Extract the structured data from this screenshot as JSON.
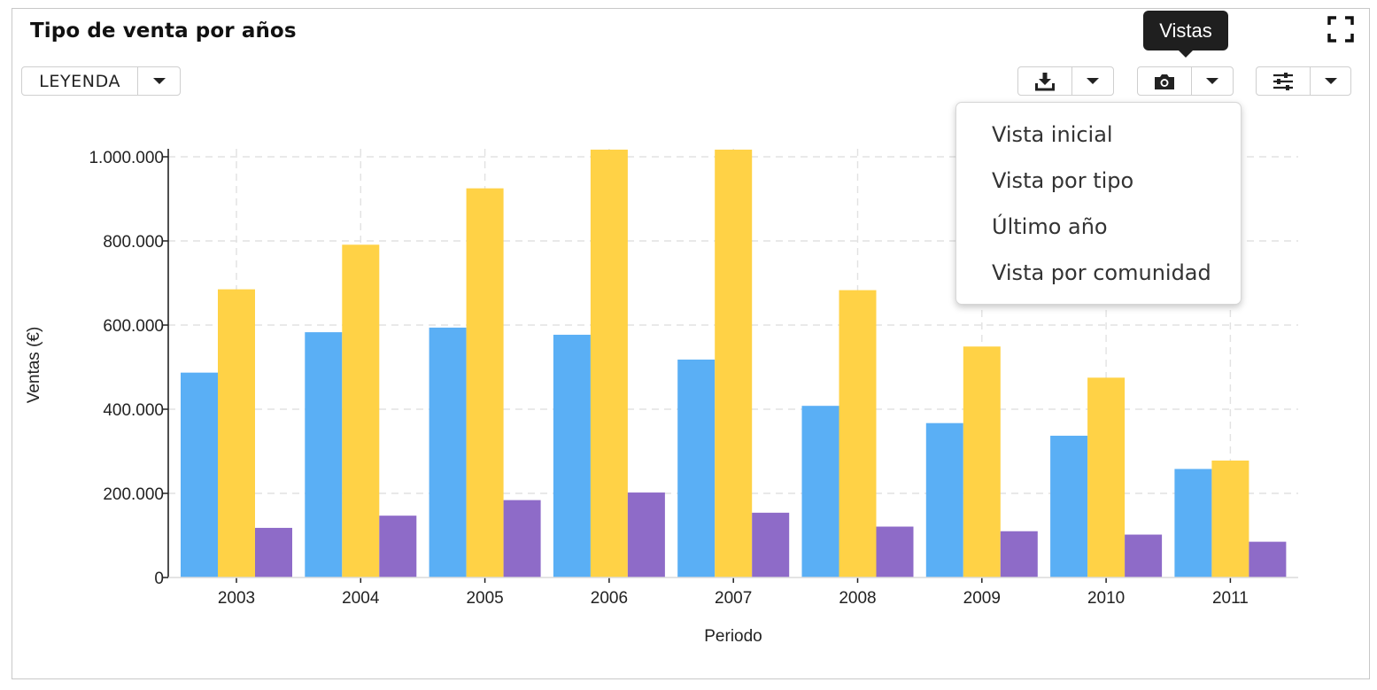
{
  "header": {
    "title": "Tipo de venta por años"
  },
  "toolbar": {
    "legend_label": "LEYENDA",
    "tooltip": "Vistas",
    "icons": [
      "download-icon",
      "camera-icon",
      "sliders-icon",
      "fullscreen-icon"
    ]
  },
  "views_menu": {
    "items": [
      "Vista inicial",
      "Vista por tipo",
      "Último año",
      "Vista por comunidad"
    ]
  },
  "colors": {
    "series": [
      "#5aaff5",
      "#ffd246",
      "#8e6bc8"
    ]
  },
  "chart_data": {
    "type": "bar",
    "title": "",
    "xlabel": "Periodo",
    "ylabel": "Ventas (€)",
    "categories": [
      "2003",
      "2004",
      "2005",
      "2006",
      "2007",
      "2008",
      "2009",
      "2010",
      "2011"
    ],
    "series": [
      {
        "values": [
          487000,
          583000,
          594000,
          577000,
          518000,
          408000,
          367000,
          337000,
          258000
        ]
      },
      {
        "values": [
          685000,
          791000,
          925000,
          1017000,
          1017000,
          683000,
          549000,
          475000,
          278000
        ]
      },
      {
        "values": [
          118000,
          147000,
          184000,
          202000,
          154000,
          121000,
          110000,
          102000,
          85000
        ]
      }
    ],
    "ylim": [
      0,
      1000000
    ],
    "yticks": [
      0,
      200000,
      400000,
      600000,
      800000,
      1000000
    ],
    "ytick_labels": [
      "0",
      "200.000",
      "400.000",
      "600.000",
      "800.000",
      "1.000.000"
    ],
    "grid": true
  }
}
